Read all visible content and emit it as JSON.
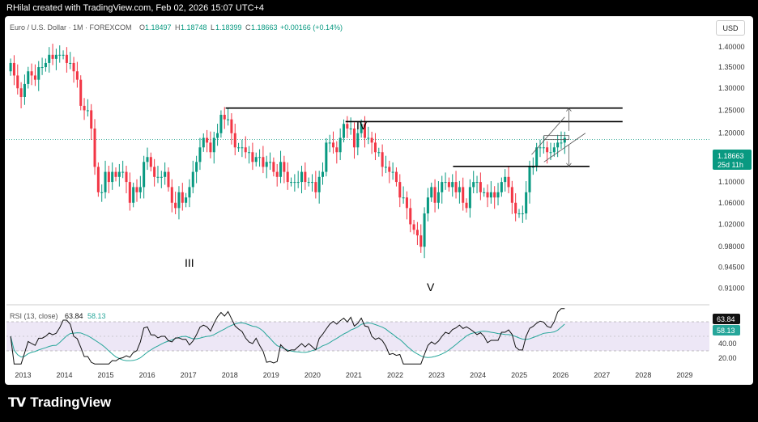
{
  "header": {
    "credit": "RHilal created with TradingView.com, Feb 02, 2026 15:07 UTC+4"
  },
  "legend": {
    "symbol": "Euro / U.S. Dollar · 1M · FOREXCOM",
    "open_label": "O",
    "open": "1.18497",
    "high_label": "H",
    "high": "1.18748",
    "low_label": "L",
    "low": "1.18399",
    "close_label": "C",
    "close": "1.18663",
    "change": "+0.00166 (+0.14%)"
  },
  "currency_button": "USD",
  "price_badge": {
    "price": "1.18663",
    "countdown": "25d 11h"
  },
  "rsi": {
    "legend_title": "RSI (13, close)",
    "rsi_value": "63.84",
    "ma_value": "58.13",
    "upper_band": 70,
    "lower_band": 30,
    "y_ticks": [
      "40.00",
      "20.00"
    ]
  },
  "wave_labels": {
    "iii": "III",
    "iv": "IV",
    "v": "V"
  },
  "colors": {
    "up": "#089981",
    "down": "#f23645",
    "rsi_line": "#111111",
    "rsi_ma": "#26a69a",
    "rsi_band": "#ede7f6",
    "level_line": "#000000",
    "badge_bg": "#089981"
  },
  "chart_data": {
    "type": "candlestick",
    "x_axis_years": [
      "2013",
      "2014",
      "2015",
      "2016",
      "2017",
      "2018",
      "2019",
      "2020",
      "2021",
      "2022",
      "2023",
      "2024",
      "2025",
      "2026",
      "2027",
      "2028",
      "2029"
    ],
    "y_ticks": [
      "1.40000",
      "1.35000",
      "1.30000",
      "1.25000",
      "1.20000",
      "1.14000",
      "1.10000",
      "1.06000",
      "1.02000",
      "0.98000",
      "0.94500",
      "0.91000"
    ],
    "ylim": [
      0.89,
      1.42
    ],
    "scale": "log",
    "last_close": 1.18663,
    "levels": [
      1.255,
      1.225,
      1.131
    ],
    "annotations": [
      {
        "label": "III",
        "date": 2017.0
      },
      {
        "label": "IV",
        "date": 2021.0,
        "price": 1.255
      },
      {
        "label": "V",
        "date": 2022.75
      }
    ],
    "rsi_ylim": [
      10,
      90
    ],
    "monthly_closes": [
      1.36,
      1.33,
      1.3,
      1.28,
      1.31,
      1.34,
      1.33,
      1.32,
      1.35,
      1.35,
      1.36,
      1.38,
      1.37,
      1.38,
      1.38,
      1.38,
      1.36,
      1.36,
      1.34,
      1.32,
      1.26,
      1.25,
      1.25,
      1.21,
      1.13,
      1.08,
      1.08,
      1.12,
      1.1,
      1.12,
      1.11,
      1.12,
      1.12,
      1.1,
      1.06,
      1.09,
      1.08,
      1.09,
      1.14,
      1.15,
      1.13,
      1.11,
      1.11,
      1.11,
      1.12,
      1.09,
      1.06,
      1.05,
      1.08,
      1.06,
      1.07,
      1.09,
      1.12,
      1.14,
      1.17,
      1.19,
      1.18,
      1.16,
      1.19,
      1.2,
      1.24,
      1.23,
      1.23,
      1.2,
      1.17,
      1.17,
      1.17,
      1.16,
      1.16,
      1.14,
      1.15,
      1.15,
      1.13,
      1.14,
      1.14,
      1.12,
      1.11,
      1.14,
      1.12,
      1.1,
      1.1,
      1.1,
      1.1,
      1.12,
      1.1,
      1.1,
      1.1,
      1.08,
      1.11,
      1.12,
      1.18,
      1.18,
      1.17,
      1.16,
      1.19,
      1.22,
      1.21,
      1.21,
      1.17,
      1.2,
      1.22,
      1.19,
      1.19,
      1.18,
      1.16,
      1.16,
      1.13,
      1.13,
      1.12,
      1.12,
      1.1,
      1.07,
      1.07,
      1.05,
      1.02,
      1.01,
      1.0,
      0.98,
      1.04,
      1.07,
      1.09,
      1.06,
      1.08,
      1.1,
      1.1,
      1.09,
      1.1,
      1.08,
      1.09,
      1.06,
      1.05,
      1.09,
      1.1,
      1.1,
      1.08,
      1.08,
      1.07,
      1.08,
      1.07,
      1.08,
      1.1,
      1.11,
      1.09,
      1.06,
      1.04,
      1.04,
      1.04,
      1.08,
      1.13,
      1.13,
      1.17,
      1.17,
      1.17,
      1.16,
      1.16,
      1.17,
      1.18,
      1.18,
      1.19
    ]
  }
}
